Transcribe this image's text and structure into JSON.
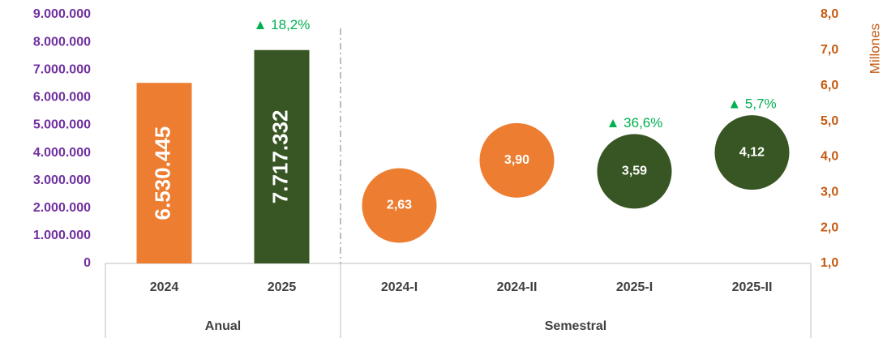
{
  "chart_data": [
    {
      "type": "bar",
      "group": "Anual",
      "categories": [
        "2024",
        "2025"
      ],
      "values": [
        6530445,
        7717332
      ],
      "value_labels": [
        "6.530.445",
        "7.717.332"
      ],
      "colors": [
        "#ED7D31",
        "#375623"
      ],
      "annotations": [
        null,
        "▲ 18,2%"
      ],
      "ylim": [
        0,
        9000000
      ],
      "yticks": [
        0,
        {
          "value": 1000000,
          "label": "1.000.000"
        },
        {
          "value": 2000000,
          "label": "2.000.000"
        },
        {
          "value": 3000000,
          "label": "3.000.000"
        },
        {
          "value": 4000000,
          "label": "4.000.000"
        },
        {
          "value": 5000000,
          "label": "5.000.000"
        },
        {
          "value": 6000000,
          "label": "6.000.000"
        },
        {
          "value": 7000000,
          "label": "7.000.000"
        },
        {
          "value": 8000000,
          "label": "8.000.000"
        },
        {
          "value": 9000000,
          "label": "9.000.000"
        }
      ]
    },
    {
      "type": "bubble",
      "group": "Semestral",
      "categories": [
        "2024-I",
        "2024-II",
        "2025-I",
        "2025-II"
      ],
      "values": [
        2.63,
        3.9,
        3.59,
        4.12
      ],
      "value_labels": [
        "2,63",
        "3,90",
        "3,59",
        "4,12"
      ],
      "colors": [
        "#ED7D31",
        "#ED7D31",
        "#375623",
        "#375623"
      ],
      "annotations": [
        null,
        null,
        "▲ 36,6%",
        "▲ 5,7%"
      ],
      "axis": "y2",
      "y2label": "Millones",
      "y2lim": [
        1,
        8
      ],
      "y2ticks": [
        {
          "value": 1,
          "label": "1,0"
        },
        {
          "value": 2,
          "label": "2,0"
        },
        {
          "value": 3,
          "label": "3,0"
        },
        {
          "value": 4,
          "label": "4,0"
        },
        {
          "value": 5,
          "label": "5,0"
        },
        {
          "value": 6,
          "label": "6,0"
        },
        {
          "value": 7,
          "label": "7,0"
        },
        {
          "value": 8,
          "label": "8,0"
        }
      ]
    }
  ]
}
